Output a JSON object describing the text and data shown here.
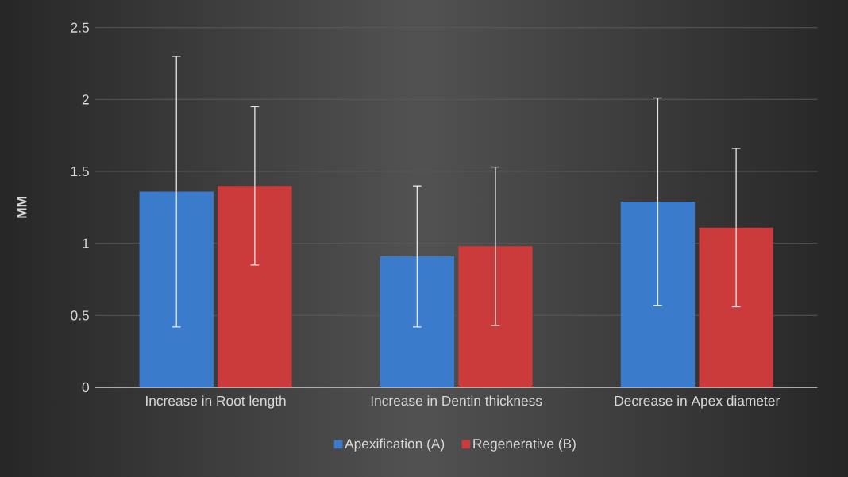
{
  "chart_data": {
    "type": "bar",
    "ylabel": "MM",
    "categories": [
      "Increase in Root length",
      "Increase in Dentin thickness",
      "Decrease in Apex diameter"
    ],
    "series": [
      {
        "name": "Apexification (A)",
        "color": "#3b7bcc",
        "values": [
          1.36,
          0.91,
          1.29
        ],
        "errors": [
          0.94,
          0.49,
          0.72
        ]
      },
      {
        "name": "Regenerative (B)",
        "color": "#cc3b3b",
        "values": [
          1.4,
          0.98,
          1.11
        ],
        "errors": [
          0.55,
          0.55,
          0.55
        ]
      }
    ],
    "ylim": [
      0,
      2.5
    ],
    "yticks": [
      0,
      0.5,
      1,
      1.5,
      2,
      2.5
    ],
    "grid": "y",
    "legend": "bottom"
  }
}
